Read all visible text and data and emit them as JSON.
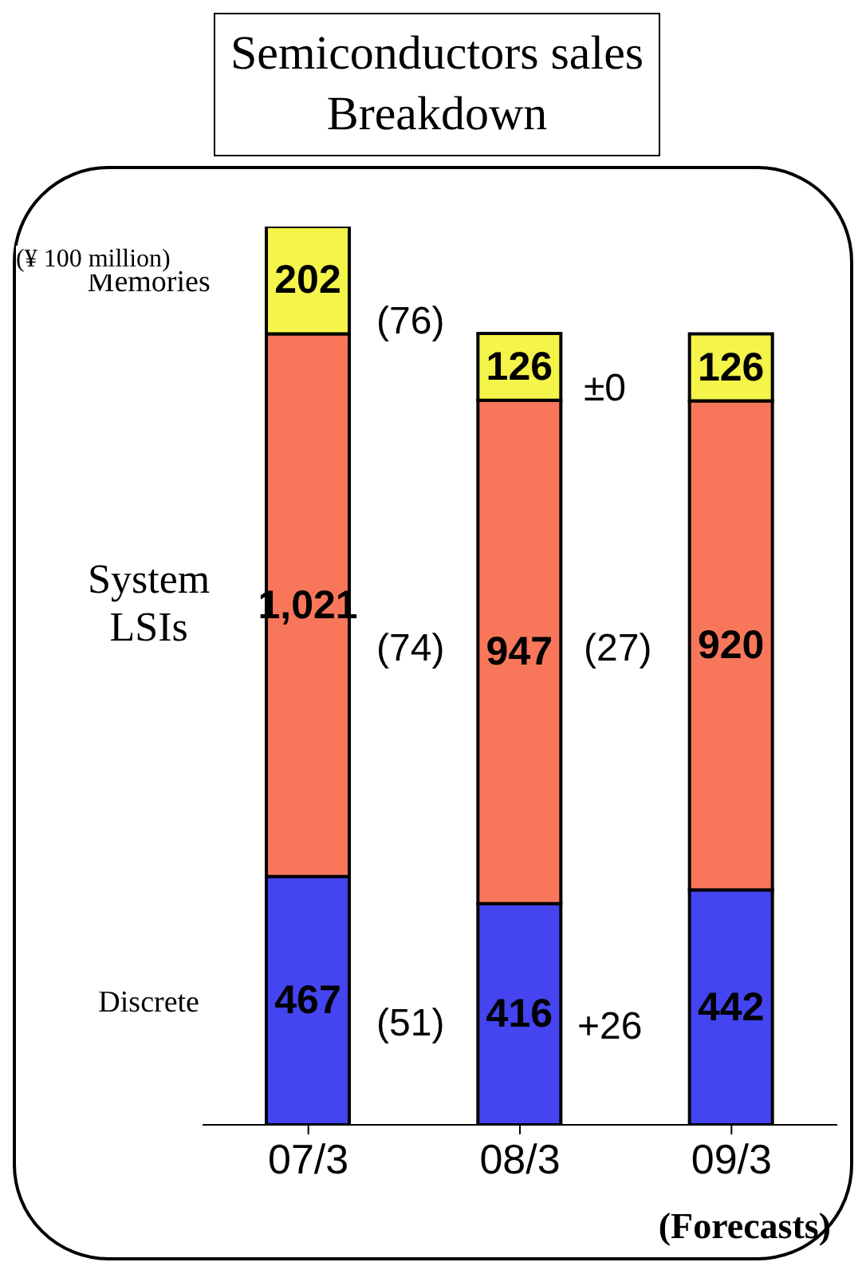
{
  "chart_data": {
    "type": "bar",
    "title": "Semiconductors sales Breakdown",
    "stacked": true,
    "legend": false,
    "grid": false,
    "tick_labels": "x",
    "categories": [
      "07/3",
      "08/3",
      "09/3"
    ],
    "series": [
      {
        "name": "Discrete",
        "color": "#4444f0",
        "values": [
          467,
          416,
          442
        ],
        "value_labels": [
          "467",
          "416",
          "442"
        ]
      },
      {
        "name": "System LSIs",
        "color": "#f8775a",
        "values": [
          1021,
          947,
          920
        ],
        "value_labels": [
          "1,021",
          "947",
          "920"
        ]
      },
      {
        "name": "Memories",
        "color": "#f4f44a",
        "values": [
          202,
          126,
          126
        ],
        "value_labels": [
          "202",
          "126",
          "126"
        ]
      }
    ],
    "annotations": [
      "(¥ 100 million)",
      "(Forecasts)",
      "(76)",
      "(74)",
      "(51)",
      "±0",
      "(27)",
      "+26"
    ]
  }
}
